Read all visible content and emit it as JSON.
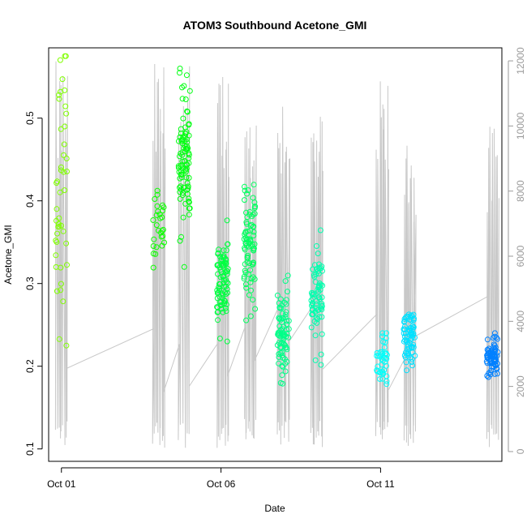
{
  "chart_data": {
    "type": "scatter",
    "title": "ATOM3 Southbound Acetone_GMI",
    "xlabel": "Date",
    "ylabel": "Acetone_GMI",
    "x_ticks": [
      "Oct 01",
      "Oct 06",
      "Oct 11"
    ],
    "x_range_days": [
      0.6,
      14.8
    ],
    "ylim": [
      0.085,
      0.585
    ],
    "y_ticks": [
      "0.1",
      "0.2",
      "0.3",
      "0.4",
      "0.5"
    ],
    "y2_ticks": [
      "0",
      "2000",
      "4000",
      "6000",
      "8000",
      "10000",
      "12000"
    ],
    "y2lim": [
      -300,
      12400
    ],
    "colors": {
      "start": "#80ff00",
      "end": "#0080ff",
      "altitude_line": "#c8c8c8"
    },
    "grid": false,
    "series": [
      {
        "day": 1.0,
        "center": 0.4,
        "spread": 0.16,
        "min": 0.225,
        "max": 0.575,
        "n": 45
      },
      {
        "day": 4.05,
        "center": 0.37,
        "spread": 0.04,
        "min": 0.315,
        "max": 0.425,
        "n": 28
      },
      {
        "day": 4.85,
        "center": 0.45,
        "spread": 0.07,
        "min": 0.32,
        "max": 0.56,
        "n": 95
      },
      {
        "day": 6.05,
        "center": 0.3,
        "spread": 0.05,
        "min": 0.23,
        "max": 0.46,
        "n": 85
      },
      {
        "day": 6.9,
        "center": 0.34,
        "spread": 0.06,
        "min": 0.23,
        "max": 0.54,
        "n": 80
      },
      {
        "day": 7.95,
        "center": 0.24,
        "spread": 0.06,
        "min": 0.088,
        "max": 0.32,
        "n": 80
      },
      {
        "day": 9.0,
        "center": 0.28,
        "spread": 0.05,
        "min": 0.185,
        "max": 0.44,
        "n": 70
      },
      {
        "day": 11.05,
        "center": 0.21,
        "spread": 0.03,
        "min": 0.12,
        "max": 0.24,
        "n": 40
      },
      {
        "day": 11.9,
        "center": 0.235,
        "spread": 0.03,
        "min": 0.16,
        "max": 0.31,
        "n": 70
      },
      {
        "day": 14.5,
        "center": 0.21,
        "spread": 0.02,
        "min": 0.16,
        "max": 0.24,
        "n": 75
      }
    ],
    "altitude_profiles": [
      {
        "day": 1.0,
        "max": 12000
      },
      {
        "day": 4.05,
        "max": 12000
      },
      {
        "day": 4.85,
        "max": 12000
      },
      {
        "day": 6.05,
        "max": 12000
      },
      {
        "day": 6.9,
        "max": 11000
      },
      {
        "day": 7.95,
        "max": 11600
      },
      {
        "day": 9.0,
        "max": 10500
      },
      {
        "day": 11.05,
        "max": 11400
      },
      {
        "day": 11.9,
        "max": 9900
      },
      {
        "day": 14.5,
        "max": 10000
      }
    ]
  }
}
